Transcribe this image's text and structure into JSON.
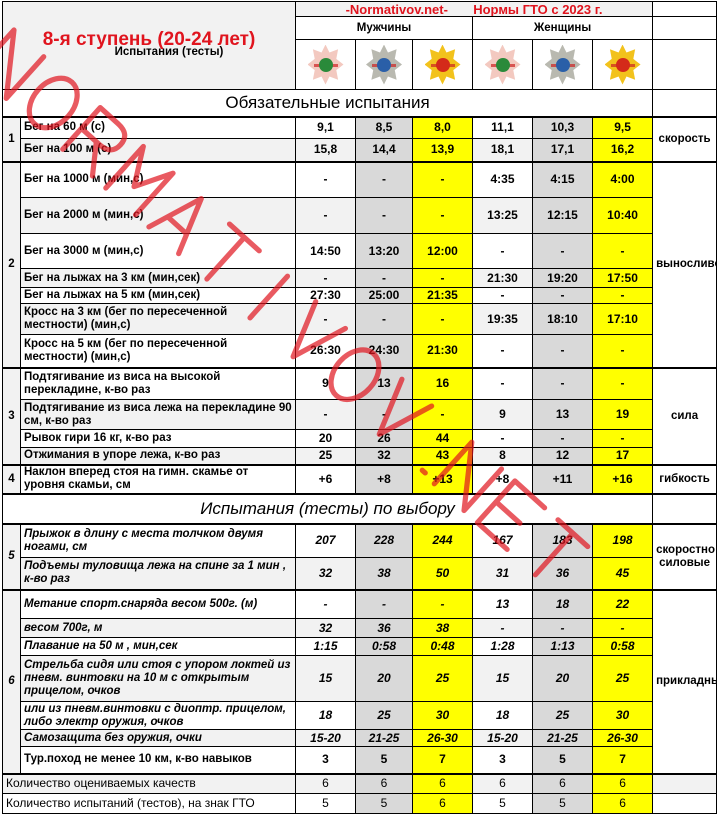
{
  "header": {
    "title": "8-я ступень (20-24 лет)",
    "subtitle": "Испытания (тесты)",
    "site": "-Normativov.net-",
    "norms_title": "Нормы ГТО с 2023 г.",
    "men": "Мужчины",
    "women": "Женщины",
    "medals": [
      "bronze-badge",
      "silver-badge",
      "gold-badge",
      "bronze-badge",
      "silver-badge",
      "gold-badge"
    ]
  },
  "colors": {
    "title": "#e0141e",
    "silver": "#d9d9d9",
    "gold": "#ffff00",
    "row_alt": "#f2f2f2"
  },
  "section_mandatory": "Обязательные испытания",
  "section_optional": "Испытания (тесты) по выбору",
  "groups": [
    {
      "num": "1",
      "quality": "скорость",
      "italic": false,
      "rows": [
        {
          "name": "Бег на 60 м (с)",
          "values": [
            "9,1",
            "8,5",
            "8,0",
            "11,1",
            "10,3",
            "9,5"
          ]
        },
        {
          "name": "Бег на 100 м (с)",
          "values": [
            "15,8",
            "14,4",
            "13,9",
            "18,1",
            "17,1",
            "16,2"
          ]
        }
      ]
    },
    {
      "num": "2",
      "quality": "выносливость",
      "italic": false,
      "rows": [
        {
          "name": "Бег на 1000 м (мин,с)",
          "values": [
            "-",
            "-",
            "-",
            "4:35",
            "4:15",
            "4:00"
          ]
        },
        {
          "name": "Бег на 2000 м (мин,с)",
          "values": [
            "-",
            "-",
            "-",
            "13:25",
            "12:15",
            "10:40"
          ]
        },
        {
          "name": "Бег на 3000 м (мин,с)",
          "values": [
            "14:50",
            "13:20",
            "12:00",
            "-",
            "-",
            "-"
          ]
        },
        {
          "name": "Бег на лыжах на 3 км (мин,сек)",
          "values": [
            "-",
            "-",
            "-",
            "21:30",
            "19:20",
            "17:50"
          ]
        },
        {
          "name": "Бег на лыжах на 5 км (мин,сек)",
          "values": [
            "27:30",
            "25:00",
            "21:35",
            "-",
            "-",
            "-"
          ]
        },
        {
          "name": "Кросс на 3 км (бег по пересеченной местности) (мин,с)",
          "values": [
            "-",
            "-",
            "-",
            "19:35",
            "18:10",
            "17:10"
          ]
        },
        {
          "name": "Кросс на 5 км (бег по пересеченной местности) (мин,с)",
          "values": [
            "26:30",
            "24:30",
            "21:30",
            "-",
            "-",
            "-"
          ]
        }
      ]
    },
    {
      "num": "3",
      "quality": "сила",
      "italic": false,
      "rows": [
        {
          "name": "Подтягивание из виса на высокой перекладине, к-во раз",
          "values": [
            "9",
            "13",
            "16",
            "-",
            "-",
            "-"
          ]
        },
        {
          "name": "Подтягивание из виса лежа на перекладине 90 см, к-во раз",
          "values": [
            "-",
            "-",
            "-",
            "9",
            "13",
            "19"
          ]
        },
        {
          "name": "Рывок гири 16 кг, к-во раз",
          "values": [
            "20",
            "26",
            "44",
            "-",
            "-",
            "-"
          ]
        },
        {
          "name": "Отжимания в упоре лежа, к-во раз",
          "values": [
            "25",
            "32",
            "43",
            "8",
            "12",
            "17"
          ]
        }
      ]
    },
    {
      "num": "4",
      "quality": "гибкость",
      "italic": false,
      "rows": [
        {
          "name": "Наклон вперед стоя на гимн. скамье от уровня скамьи, см",
          "values": [
            "+6",
            "+8",
            "+13",
            "+8",
            "+11",
            "+16"
          ]
        }
      ]
    },
    {
      "section": "optional"
    },
    {
      "num": "5",
      "quality": "скоростно силовые",
      "italic": true,
      "rows": [
        {
          "name": "Прыжок в длину с места толчком двумя ногами, см",
          "values": [
            "207",
            "228",
            "244",
            "167",
            "183",
            "198"
          ]
        },
        {
          "name": "Подъемы туловища лежа на спине за 1 мин , к-во раз",
          "values": [
            "32",
            "38",
            "50",
            "31",
            "36",
            "45"
          ]
        }
      ]
    },
    {
      "num": "6",
      "quality": "прикладные",
      "italic": true,
      "rows": [
        {
          "name": "Метание спорт.снаряда весом 500г. (м)",
          "values": [
            "-",
            "-",
            "-",
            "13",
            "18",
            "22"
          ]
        },
        {
          "name": "весом 700г, м",
          "values": [
            "32",
            "36",
            "38",
            "-",
            "-",
            "-"
          ]
        },
        {
          "name": "Плавание на 50 м , мин,сек",
          "values": [
            "1:15",
            "0:58",
            "0:48",
            "1:28",
            "1:13",
            "0:58"
          ]
        },
        {
          "name": "Стрельба сидя или стоя с упором локтей из пневм. винтовки на 10 м с открытым прицелом, очков",
          "values": [
            "15",
            "20",
            "25",
            "15",
            "20",
            "25"
          ]
        },
        {
          "name": "или из пневм.винтовки с диоптр. прицелом, либо электр оружия, очков",
          "values": [
            "18",
            "25",
            "30",
            "18",
            "25",
            "30"
          ]
        },
        {
          "name": "Самозащита без оружия, очки",
          "values": [
            "15-20",
            "21-25",
            "26-30",
            "15-20",
            "21-25",
            "26-30"
          ]
        },
        {
          "name": "Тур.поход не менее 10 км, к-во навыков",
          "values": [
            "3",
            "5",
            "7",
            "3",
            "5",
            "7"
          ],
          "upright": true
        }
      ]
    }
  ],
  "summary": [
    {
      "name": "Количество оцениваемых качеств",
      "values": [
        "6",
        "6",
        "6",
        "6",
        "6",
        "6"
      ]
    },
    {
      "name": "Количество испытаний (тестов), на знак ГТО",
      "values": [
        "5",
        "5",
        "6",
        "5",
        "5",
        "6"
      ]
    }
  ],
  "watermark": "NORMATIVOV.NET"
}
